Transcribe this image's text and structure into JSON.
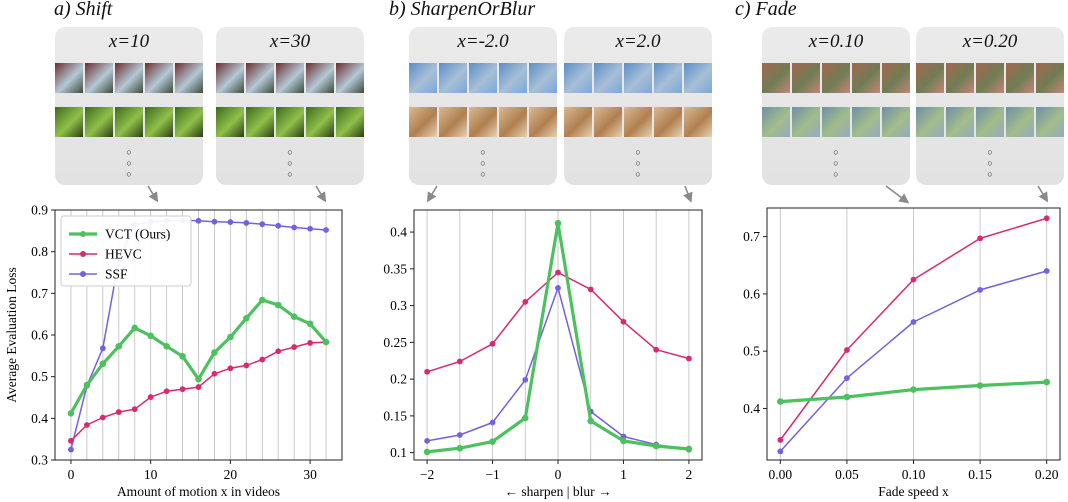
{
  "panels": [
    {
      "title": "a) Shift",
      "thumbs": [
        "x=10",
        "x=30"
      ],
      "strip_colors": [
        [
          "#6b2e2e",
          "#b4c8d6",
          "#3d4a3a"
        ],
        [
          "#3d6b1e",
          "#8fbf4a",
          "#2a3d16"
        ]
      ]
    },
    {
      "title": "b) SharpenOrBlur",
      "thumbs": [
        "x=-2.0",
        "x=2.0"
      ],
      "strip_colors": [
        [
          "#5a8fc8",
          "#a8bfd6",
          "#7aa6d8"
        ],
        [
          "#d9b992",
          "#b07f4f",
          "#e8d2b4"
        ]
      ]
    },
    {
      "title": "c) Fade",
      "thumbs": [
        "x=0.10",
        "x=0.20"
      ],
      "strip_colors": [
        [
          "#a4674e",
          "#6f7d55",
          "#c88477"
        ],
        [
          "#6f8fa8",
          "#a2bd8a",
          "#93aac2"
        ]
      ]
    }
  ],
  "colors": {
    "vct": "#4cc15e",
    "hevc": "#d62a72",
    "ssf": "#7660e0"
  },
  "chart_data": [
    {
      "type": "line",
      "xlabel": "Amount of motion x in videos",
      "ylabel": "Average Evaluation Loss",
      "xlim": [
        -2,
        34
      ],
      "ylim": [
        0.3,
        0.9
      ],
      "xticks": [
        0,
        10,
        20,
        30
      ],
      "yticks": [
        0.3,
        0.4,
        0.5,
        0.6,
        0.7,
        0.8,
        0.9
      ],
      "vgrid": [
        0,
        2,
        4,
        6,
        8,
        10,
        12,
        14,
        16,
        18,
        20,
        22,
        24,
        26,
        28,
        30,
        32
      ],
      "legend": [
        "VCT (Ours)",
        "HEVC",
        "SSF"
      ],
      "legend_position": "upper-left",
      "series": [
        {
          "name": "VCT (Ours)",
          "x": [
            0,
            2,
            4,
            6,
            8,
            10,
            12,
            14,
            16,
            18,
            20,
            22,
            24,
            26,
            28,
            30,
            32
          ],
          "values": [
            0.412,
            0.48,
            0.531,
            0.573,
            0.617,
            0.598,
            0.573,
            0.549,
            0.494,
            0.558,
            0.595,
            0.64,
            0.684,
            0.672,
            0.644,
            0.627,
            0.583
          ]
        },
        {
          "name": "HEVC",
          "x": [
            0,
            2,
            4,
            6,
            8,
            10,
            12,
            14,
            16,
            18,
            20,
            22,
            24,
            26,
            28,
            30,
            32
          ],
          "values": [
            0.346,
            0.384,
            0.402,
            0.415,
            0.422,
            0.451,
            0.465,
            0.47,
            0.475,
            0.507,
            0.52,
            0.527,
            0.541,
            0.561,
            0.571,
            0.581,
            0.583
          ]
        },
        {
          "name": "SSF",
          "x": [
            0,
            2,
            4,
            6,
            8,
            10,
            12,
            14,
            16,
            18,
            20,
            22,
            24,
            26,
            28,
            30,
            32
          ],
          "values": [
            0.325,
            0.478,
            0.568,
            0.78,
            0.865,
            0.872,
            0.874,
            0.875,
            0.874,
            0.872,
            0.871,
            0.869,
            0.866,
            0.862,
            0.858,
            0.855,
            0.852
          ]
        }
      ]
    },
    {
      "type": "line",
      "xlabel": "← sharpen | blur     →",
      "ylabel": "",
      "xlim": [
        -2.2,
        2.2
      ],
      "ylim": [
        0.09,
        0.43
      ],
      "xticks": [
        -2,
        -1,
        0,
        1,
        2
      ],
      "yticks": [
        0.1,
        0.15,
        0.2,
        0.25,
        0.3,
        0.35,
        0.4
      ],
      "vgrid": [
        -2,
        -1.5,
        -1,
        -0.5,
        0,
        0.5,
        1,
        1.5,
        2
      ],
      "series": [
        {
          "name": "VCT (Ours)",
          "x": [
            -2,
            -1.5,
            -1,
            -0.5,
            0,
            0.5,
            1,
            1.5,
            2
          ],
          "values": [
            0.101,
            0.106,
            0.115,
            0.147,
            0.412,
            0.143,
            0.116,
            0.109,
            0.105
          ]
        },
        {
          "name": "HEVC",
          "x": [
            -2,
            -1.5,
            -1,
            -0.5,
            0,
            0.5,
            1,
            1.5,
            2
          ],
          "values": [
            0.21,
            0.224,
            0.248,
            0.305,
            0.345,
            0.322,
            0.278,
            0.24,
            0.228
          ]
        },
        {
          "name": "SSF",
          "x": [
            -2,
            -1.5,
            -1,
            -0.5,
            0,
            0.5,
            1,
            1.5,
            2
          ],
          "values": [
            0.116,
            0.124,
            0.141,
            0.199,
            0.324,
            0.156,
            0.122,
            0.111,
            0.104
          ]
        }
      ]
    },
    {
      "type": "line",
      "xlabel": "Fade speed x",
      "ylabel": "",
      "xlim": [
        -0.01,
        0.21
      ],
      "ylim": [
        0.31,
        0.75
      ],
      "xticks": [
        0.0,
        0.05,
        0.1,
        0.15,
        0.2
      ],
      "xticklabels": [
        "0.00",
        "0.05",
        "0.10",
        "0.15",
        "0.20"
      ],
      "yticks": [
        0.4,
        0.5,
        0.6,
        0.7
      ],
      "vgrid": [
        0.0,
        0.05,
        0.1,
        0.15,
        0.2
      ],
      "series": [
        {
          "name": "VCT (Ours)",
          "x": [
            0,
            0.05,
            0.1,
            0.15,
            0.2
          ],
          "values": [
            0.412,
            0.42,
            0.433,
            0.44,
            0.446
          ]
        },
        {
          "name": "HEVC",
          "x": [
            0,
            0.05,
            0.1,
            0.15,
            0.2
          ],
          "values": [
            0.345,
            0.502,
            0.625,
            0.697,
            0.732
          ]
        },
        {
          "name": "SSF",
          "x": [
            0,
            0.05,
            0.1,
            0.15,
            0.2
          ],
          "values": [
            0.325,
            0.453,
            0.551,
            0.607,
            0.64
          ]
        }
      ]
    }
  ]
}
